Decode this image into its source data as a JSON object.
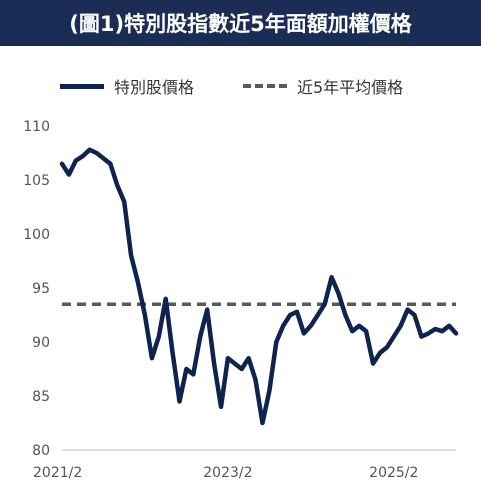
{
  "title": "(圖1)特別股指數近5年面額加權價格",
  "colors": {
    "title_bg": "#1b2d55",
    "title_text": "#ffffff",
    "series_line": "#0f2350",
    "avg_line": "#595959",
    "axis": "#bfbfbf"
  },
  "chart_data": {
    "type": "line",
    "title": "(圖1)特別股指數近5年面額加權價格",
    "xlabel": "",
    "ylabel": "",
    "ylim": [
      80,
      110
    ],
    "yticks": [
      80,
      85,
      90,
      95,
      100,
      105,
      110
    ],
    "xlim": [
      "2021/2",
      "2025/11"
    ],
    "xticks": [
      "2021/2",
      "2023/2",
      "2025/2"
    ],
    "grid": false,
    "legend_position": "top",
    "series": [
      {
        "name": "特別股價格",
        "style": "solid",
        "x": [
          "2021/2",
          "2021/3",
          "2021/4",
          "2021/5",
          "2021/6",
          "2021/7",
          "2021/8",
          "2021/9",
          "2021/10",
          "2021/11",
          "2021/12",
          "2022/1",
          "2022/2",
          "2022/3",
          "2022/4",
          "2022/5",
          "2022/6",
          "2022/7",
          "2022/8",
          "2022/9",
          "2022/10",
          "2022/11",
          "2022/12",
          "2023/1",
          "2023/2",
          "2023/3",
          "2023/4",
          "2023/5",
          "2023/6",
          "2023/7",
          "2023/8",
          "2023/9",
          "2023/10",
          "2023/11",
          "2023/12",
          "2024/1",
          "2024/2",
          "2024/3",
          "2024/4",
          "2024/5",
          "2024/6",
          "2024/7",
          "2024/8",
          "2024/9",
          "2024/10",
          "2024/11",
          "2024/12",
          "2025/1",
          "2025/2",
          "2025/3",
          "2025/4",
          "2025/5",
          "2025/6",
          "2025/7",
          "2025/8",
          "2025/9",
          "2025/10",
          "2025/11"
        ],
        "values": [
          106.5,
          105.5,
          106.8,
          107.2,
          107.8,
          107.5,
          107.0,
          106.5,
          104.5,
          103.0,
          98.0,
          95.5,
          92.5,
          88.5,
          90.5,
          94.0,
          89.0,
          84.5,
          87.5,
          87.0,
          90.5,
          93.0,
          88.0,
          84.0,
          88.5,
          88.0,
          87.5,
          88.5,
          86.5,
          82.5,
          85.5,
          90.0,
          91.5,
          92.5,
          92.8,
          90.8,
          91.5,
          92.5,
          93.5,
          96.0,
          94.5,
          92.5,
          91.0,
          91.5,
          91.0,
          88.0,
          89.0,
          89.5,
          90.5,
          91.5,
          93.0,
          92.5,
          90.5,
          90.8,
          91.2,
          91.0,
          91.5,
          90.8
        ]
      },
      {
        "name": "近5年平均價格",
        "style": "dashed",
        "x": [
          "2021/2",
          "2025/11"
        ],
        "values": [
          93.5,
          93.5
        ]
      }
    ]
  }
}
